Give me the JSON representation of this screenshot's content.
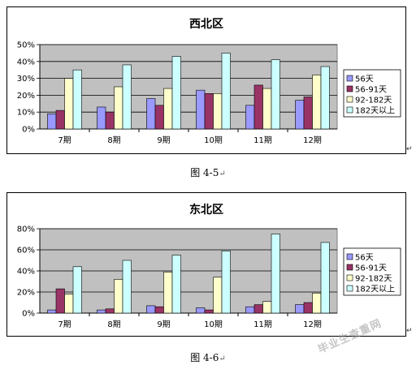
{
  "colors": {
    "plot_bg": "#C0C0C0",
    "series": [
      "#9999FF",
      "#993366",
      "#FFFFCC",
      "#CCFFFF"
    ]
  },
  "chart_data": [
    {
      "type": "bar",
      "title": "西北区",
      "categories": [
        "7期",
        "8期",
        "9期",
        "10期",
        "11期",
        "12期"
      ],
      "ylim": [
        0,
        50
      ],
      "yticks": [
        "0%",
        "10%",
        "20%",
        "30%",
        "40%",
        "50%"
      ],
      "grid": true,
      "legend_position": "right",
      "series": [
        {
          "name": "56天",
          "values": [
            9,
            13,
            18,
            23,
            14,
            17
          ]
        },
        {
          "name": "56-91天",
          "values": [
            11,
            10,
            14,
            21,
            26,
            19
          ]
        },
        {
          "name": "92-182天",
          "values": [
            30,
            25,
            24,
            21,
            24,
            32
          ]
        },
        {
          "name": "182天以上",
          "values": [
            35,
            38,
            43,
            45,
            41,
            37
          ]
        }
      ]
    },
    {
      "type": "bar",
      "title": "东北区",
      "categories": [
        "7期",
        "8期",
        "9期",
        "10期",
        "11期",
        "12期"
      ],
      "ylim": [
        0,
        80
      ],
      "yticks": [
        "0%",
        "20%",
        "40%",
        "60%",
        "80%"
      ],
      "grid": true,
      "legend_position": "right",
      "series": [
        {
          "name": "56天",
          "values": [
            3,
            3,
            7,
            5,
            6,
            8
          ]
        },
        {
          "name": "56-91天",
          "values": [
            23,
            4,
            6,
            3,
            8,
            10
          ]
        },
        {
          "name": "92-182天",
          "values": [
            18,
            32,
            39,
            34,
            11,
            19
          ]
        },
        {
          "name": "182天以上",
          "values": [
            44,
            50,
            55,
            59,
            75,
            67
          ]
        }
      ]
    }
  ],
  "captions": [
    "图 4-5",
    "图 4-6"
  ],
  "paragraph_mark": "↵",
  "watermark": "毕业生查重网"
}
